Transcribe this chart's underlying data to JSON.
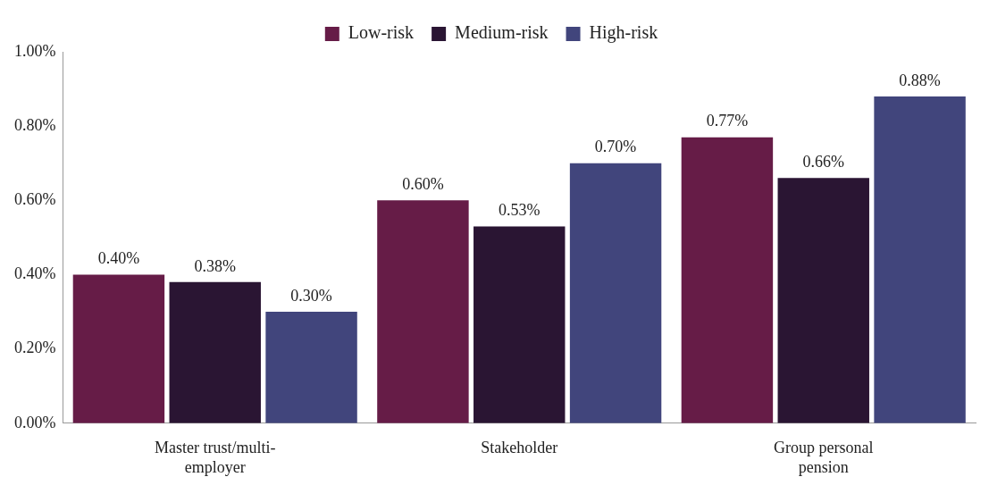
{
  "chart_data": {
    "type": "bar",
    "categories": [
      "Master trust/multi-employer",
      "Stakeholder",
      "Group personal pension"
    ],
    "series": [
      {
        "name": "Low-risk",
        "color": "#661c47",
        "values": [
          0.4,
          0.6,
          0.77
        ],
        "value_labels": [
          "0.40%",
          "0.60%",
          "0.77%"
        ]
      },
      {
        "name": "Medium-risk",
        "color": "#2a1533",
        "values": [
          0.38,
          0.53,
          0.66
        ],
        "value_labels": [
          "0.38%",
          "0.53%",
          "0.66%"
        ]
      },
      {
        "name": "High-risk",
        "color": "#41457c",
        "values": [
          0.3,
          0.7,
          0.88
        ],
        "value_labels": [
          "0.30%",
          "0.70%",
          "0.88%"
        ]
      }
    ],
    "ylim": [
      0,
      1
    ],
    "yticks": [
      {
        "value": 0,
        "label": "0.00%"
      },
      {
        "value": 0.2,
        "label": "0.20%"
      },
      {
        "value": 0.4,
        "label": "0.40%"
      },
      {
        "value": 0.6,
        "label": "0.60%"
      },
      {
        "value": 0.8,
        "label": "0.80%"
      },
      {
        "value": 1,
        "label": "1.00%"
      }
    ],
    "grid": false,
    "legend": "top"
  }
}
